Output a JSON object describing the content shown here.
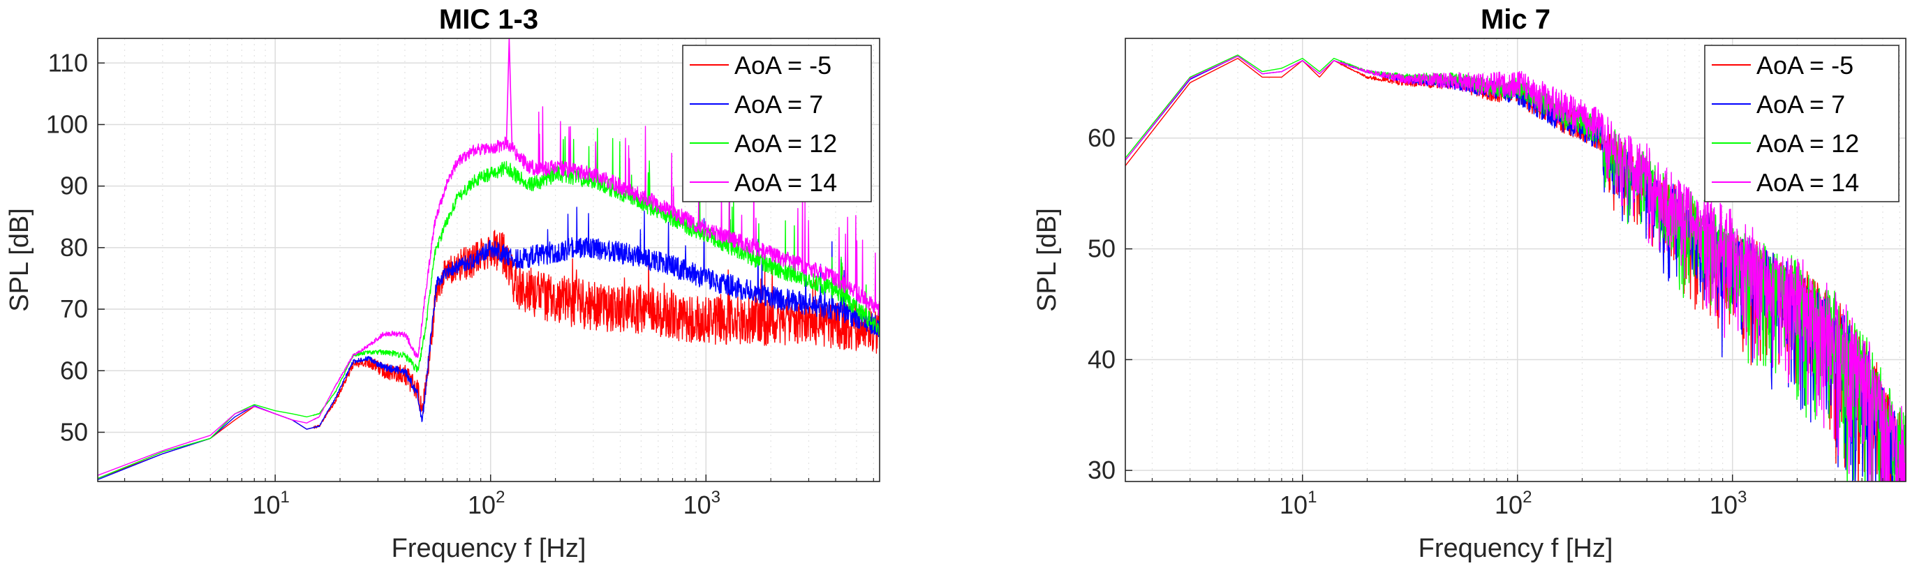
{
  "chart_data": [
    {
      "type": "line",
      "title": "MIC 1-3",
      "xlabel": "Frequency f [Hz]",
      "ylabel": "SPL [dB]",
      "xscale": "log",
      "xlim": [
        1.5,
        6400
      ],
      "ylim": [
        42,
        114
      ],
      "x_ticks": [
        {
          "value": 10,
          "base": "10",
          "exp": "1"
        },
        {
          "value": 100,
          "base": "10",
          "exp": "2"
        },
        {
          "value": 1000,
          "base": "10",
          "exp": "3"
        }
      ],
      "y_ticks": [
        50,
        60,
        70,
        80,
        90,
        100,
        110
      ],
      "grid": true,
      "legend_position": "top-right",
      "series": [
        {
          "name": "AoA = -5",
          "color": "#ff0000",
          "noise": 4,
          "spikes": 0.25,
          "points": [
            [
              1.5,
              42.5
            ],
            [
              3,
              46.5
            ],
            [
              5,
              49
            ],
            [
              6.5,
              52
            ],
            [
              8,
              54.2
            ],
            [
              10,
              53
            ],
            [
              12,
              52
            ],
            [
              14,
              50.5
            ],
            [
              16,
              51
            ],
            [
              19,
              55
            ],
            [
              23,
              61
            ],
            [
              27,
              61.5
            ],
            [
              32,
              60
            ],
            [
              40,
              59.5
            ],
            [
              46,
              56.5
            ],
            [
              48,
              53
            ],
            [
              52,
              62
            ],
            [
              56,
              73
            ],
            [
              62,
              76
            ],
            [
              70,
              77
            ],
            [
              85,
              78
            ],
            [
              100,
              80
            ],
            [
              115,
              79
            ],
            [
              130,
              74
            ],
            [
              180,
              72
            ],
            [
              250,
              71
            ],
            [
              350,
              70
            ],
            [
              500,
              70
            ],
            [
              700,
              69
            ],
            [
              1000,
              68
            ],
            [
              2000,
              68
            ],
            [
              4000,
              67.5
            ],
            [
              6400,
              66.5
            ]
          ]
        },
        {
          "name": "AoA = 7",
          "color": "#0000ff",
          "noise": 1.8,
          "spikes": 0.3,
          "points": [
            [
              1.5,
              42.3
            ],
            [
              3,
              46.5
            ],
            [
              5,
              49
            ],
            [
              6.5,
              52.5
            ],
            [
              8,
              54.3
            ],
            [
              10,
              53
            ],
            [
              12,
              52
            ],
            [
              14,
              50.5
            ],
            [
              16,
              51
            ],
            [
              19,
              55.5
            ],
            [
              23,
              61.5
            ],
            [
              27,
              62
            ],
            [
              32,
              60.5
            ],
            [
              40,
              60
            ],
            [
              46,
              56
            ],
            [
              48,
              51.5
            ],
            [
              52,
              63
            ],
            [
              56,
              74
            ],
            [
              62,
              76
            ],
            [
              70,
              77
            ],
            [
              85,
              78
            ],
            [
              100,
              80
            ],
            [
              115,
              79
            ],
            [
              130,
              78
            ],
            [
              180,
              79
            ],
            [
              250,
              80
            ],
            [
              350,
              79.5
            ],
            [
              500,
              78.5
            ],
            [
              700,
              77
            ],
            [
              1000,
              75
            ],
            [
              2000,
              72
            ],
            [
              4000,
              70
            ],
            [
              6400,
              67
            ]
          ]
        },
        {
          "name": "AoA = 12",
          "color": "#00ff00",
          "noise": 1.4,
          "spikes": 0.25,
          "points": [
            [
              1.5,
              42.5
            ],
            [
              3,
              46.8
            ],
            [
              5,
              49
            ],
            [
              6.5,
              53
            ],
            [
              8,
              54.5
            ],
            [
              10,
              53.5
            ],
            [
              12,
              53
            ],
            [
              14,
              52.5
            ],
            [
              16,
              53
            ],
            [
              19,
              56.5
            ],
            [
              23,
              62.5
            ],
            [
              27,
              63
            ],
            [
              32,
              63
            ],
            [
              40,
              62.5
            ],
            [
              46,
              60
            ],
            [
              50,
              67
            ],
            [
              55,
              79
            ],
            [
              62,
              84
            ],
            [
              70,
              88
            ],
            [
              85,
              91
            ],
            [
              100,
              92
            ],
            [
              120,
              93
            ],
            [
              150,
              90
            ],
            [
              200,
              92
            ],
            [
              300,
              91
            ],
            [
              400,
              89
            ],
            [
              600,
              86
            ],
            [
              1000,
              82
            ],
            [
              2000,
              77
            ],
            [
              4000,
              73
            ],
            [
              6400,
              67
            ]
          ]
        },
        {
          "name": "AoA = 14",
          "color": "#ff00ff",
          "noise": 1.3,
          "spikes": 0.4,
          "points": [
            [
              1.5,
              43
            ],
            [
              3,
              47
            ],
            [
              5,
              49.5
            ],
            [
              6.5,
              53
            ],
            [
              8,
              54.2
            ],
            [
              10,
              53
            ],
            [
              12,
              52
            ],
            [
              14,
              51.5
            ],
            [
              16,
              52.5
            ],
            [
              19,
              57.5
            ],
            [
              23,
              62.5
            ],
            [
              27,
              64
            ],
            [
              32,
              66
            ],
            [
              40,
              66
            ],
            [
              46,
              62
            ],
            [
              50,
              73
            ],
            [
              55,
              84
            ],
            [
              62,
              90
            ],
            [
              70,
              94
            ],
            [
              85,
              96
            ],
            [
              100,
              96
            ],
            [
              120,
              97
            ],
            [
              150,
              93
            ],
            [
              200,
              93
            ],
            [
              300,
              92
            ],
            [
              400,
              90
            ],
            [
              600,
              87
            ],
            [
              1000,
              83
            ],
            [
              2000,
              79
            ],
            [
              4000,
              75
            ],
            [
              6400,
              70
            ]
          ]
        }
      ],
      "peaks": [
        {
          "x": 122,
          "y": 114,
          "series": "AoA = 14"
        }
      ]
    },
    {
      "type": "line",
      "title": "Mic 7",
      "xlabel": "Frequency f [Hz]",
      "ylabel": "SPL [dB]",
      "xscale": "log",
      "xlim": [
        1.5,
        6400
      ],
      "ylim": [
        29,
        69
      ],
      "x_ticks": [
        {
          "value": 10,
          "base": "10",
          "exp": "1"
        },
        {
          "value": 100,
          "base": "10",
          "exp": "2"
        },
        {
          "value": 1000,
          "base": "10",
          "exp": "3"
        }
      ],
      "y_ticks": [
        30,
        40,
        50,
        60
      ],
      "grid": true,
      "legend_position": "top-right",
      "series": [
        {
          "name": "AoA = -5",
          "color": "#ff0000",
          "noise": 1.2,
          "points": [
            [
              1.5,
              57.5
            ],
            [
              3,
              65
            ],
            [
              5,
              67.2
            ],
            [
              6.5,
              65.5
            ],
            [
              8,
              65.5
            ],
            [
              10,
              67
            ],
            [
              12,
              65.5
            ],
            [
              14,
              67
            ],
            [
              20,
              65.5
            ],
            [
              30,
              65
            ],
            [
              50,
              65
            ],
            [
              80,
              64
            ],
            [
              100,
              64
            ],
            [
              150,
              62
            ],
            [
              250,
              60
            ],
            [
              400,
              57
            ],
            [
              600,
              54
            ],
            [
              1000,
              51
            ],
            [
              2000,
              48
            ],
            [
              3000,
              45
            ],
            [
              4000,
              42
            ],
            [
              5000,
              38
            ],
            [
              6400,
              34
            ]
          ]
        },
        {
          "name": "AoA = 7",
          "color": "#0000ff",
          "noise": 1.2,
          "points": [
            [
              1.5,
              58
            ],
            [
              3,
              65.3
            ],
            [
              5,
              67.4
            ],
            [
              6.5,
              65.8
            ],
            [
              8,
              66
            ],
            [
              10,
              67
            ],
            [
              12,
              65.8
            ],
            [
              14,
              67
            ],
            [
              20,
              66
            ],
            [
              30,
              65.3
            ],
            [
              50,
              65
            ],
            [
              80,
              64.3
            ],
            [
              100,
              64
            ],
            [
              150,
              62
            ],
            [
              250,
              60
            ],
            [
              400,
              57
            ],
            [
              600,
              54
            ],
            [
              1000,
              51
            ],
            [
              2000,
              47.5
            ],
            [
              3000,
              44.5
            ],
            [
              4000,
              41
            ],
            [
              5000,
              37
            ],
            [
              6400,
              33
            ]
          ]
        },
        {
          "name": "AoA = 12",
          "color": "#00ff00",
          "noise": 1.2,
          "points": [
            [
              1.5,
              58.2
            ],
            [
              3,
              65.5
            ],
            [
              5,
              67.5
            ],
            [
              6.5,
              66
            ],
            [
              8,
              66.3
            ],
            [
              10,
              67.2
            ],
            [
              12,
              66
            ],
            [
              14,
              67.2
            ],
            [
              20,
              66
            ],
            [
              30,
              65.5
            ],
            [
              50,
              65.3
            ],
            [
              80,
              64.5
            ],
            [
              100,
              64.5
            ],
            [
              150,
              62.5
            ],
            [
              250,
              60.5
            ],
            [
              400,
              57.5
            ],
            [
              600,
              54.5
            ],
            [
              1000,
              51.5
            ],
            [
              2000,
              48
            ],
            [
              3000,
              45
            ],
            [
              4000,
              42
            ],
            [
              5000,
              38
            ],
            [
              6400,
              34
            ]
          ]
        },
        {
          "name": "AoA = 14",
          "color": "#ff00ff",
          "noise": 1.6,
          "points": [
            [
              1.5,
              58
            ],
            [
              3,
              65.4
            ],
            [
              5,
              67.4
            ],
            [
              6.5,
              65.8
            ],
            [
              8,
              66
            ],
            [
              10,
              67
            ],
            [
              12,
              65.8
            ],
            [
              14,
              67
            ],
            [
              20,
              66
            ],
            [
              30,
              65.3
            ],
            [
              50,
              65.2
            ],
            [
              80,
              64.8
            ],
            [
              100,
              65
            ],
            [
              150,
              63
            ],
            [
              250,
              61
            ],
            [
              400,
              58
            ],
            [
              600,
              55
            ],
            [
              1000,
              52
            ],
            [
              2000,
              48
            ],
            [
              3000,
              45
            ],
            [
              4000,
              42
            ],
            [
              5000,
              38
            ],
            [
              6400,
              34
            ]
          ]
        }
      ]
    }
  ]
}
